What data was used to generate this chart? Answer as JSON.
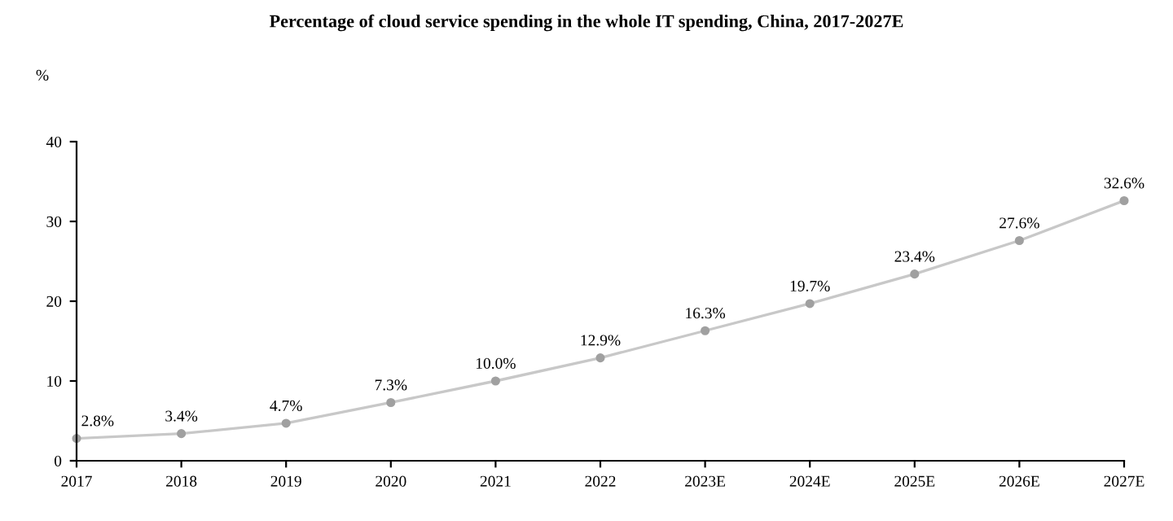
{
  "chart_data": {
    "type": "line",
    "title": "Percentage of cloud service spending in the whole IT spending, China, 2017-2027E",
    "ylabel": "%",
    "categories": [
      "2017",
      "2018",
      "2019",
      "2020",
      "2021",
      "2022",
      "2023E",
      "2024E",
      "2025E",
      "2026E",
      "2027E"
    ],
    "values": [
      2.8,
      3.4,
      4.7,
      7.3,
      10.0,
      12.9,
      16.3,
      19.7,
      23.4,
      27.6,
      32.6
    ],
    "value_labels": [
      "2.8%",
      "3.4%",
      "4.7%",
      "7.3%",
      "10.0%",
      "12.9%",
      "16.3%",
      "19.7%",
      "23.4%",
      "27.6%",
      "32.6%"
    ],
    "color": "#c8c8c8",
    "marker": "circle",
    "line_style": "solid",
    "ylim": [
      0,
      40
    ],
    "yticks": [
      0,
      10,
      20,
      30,
      40
    ],
    "grid": false,
    "legend": false
  }
}
